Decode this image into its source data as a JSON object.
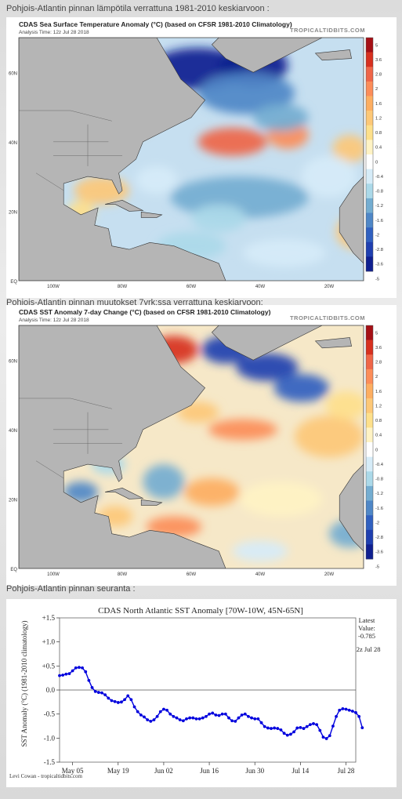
{
  "sections": [
    {
      "heading": "Pohjois-Atlantin pinnan lämpötila verrattuna 1981-2010 keskiarvoon :"
    },
    {
      "heading": "Pohjois-Atlantin pinnan muutokset 7vrk:ssa verrattuna keskiarvoon:"
    },
    {
      "heading": "Pohjois-Atlantin pinnan seuranta :"
    }
  ],
  "maps": [
    {
      "title": "CDAS Sea Surface Temperature Anomaly (°C) (based on CFSR 1981-2010 Climatology)",
      "subtitle": "Analysis Time: 12z Jul 28 2018",
      "brand": "TROPICALTIDBITS.COM"
    },
    {
      "title": "CDAS SST Anomaly 7-day Change (°C) (based on CFSR 1981-2010 Climatology)",
      "subtitle": "Analysis Time: 12z Jul 28 2018",
      "brand": "TROPICALTIDBITS.COM"
    }
  ],
  "map_axes": {
    "lat_labels": [
      "60N",
      "40N",
      "20N",
      "EQ"
    ],
    "lon_labels": [
      "100W",
      "80W",
      "60W",
      "40W",
      "20W"
    ]
  },
  "colorbar": {
    "labels": [
      "5",
      "3.6",
      "2.8",
      "2",
      "1.6",
      "1.2",
      "0.8",
      "0.4",
      "0",
      "-0.4",
      "-0.8",
      "-1.2",
      "-1.6",
      "-2",
      "-2.8",
      "-3.6",
      "-5"
    ],
    "colors": [
      "#a50f15",
      "#d7301f",
      "#ef6548",
      "#fc8d59",
      "#fdae61",
      "#fdc877",
      "#fee08b",
      "#fff3c4",
      "#ffffff",
      "#d6ecf8",
      "#abd9e9",
      "#74add1",
      "#4f87c7",
      "#3060c0",
      "#1f3fb0",
      "#0f1f90"
    ]
  },
  "chart_data": {
    "type": "line",
    "title": "CDAS North Atlantic SST Anomaly [70W-10W, 45N-65N]",
    "ylabel": "SST Anomaly (°C) (1981-2010 climatology)",
    "ylim": [
      -1.5,
      1.5
    ],
    "yticks": [
      "+1.5",
      "+1.0",
      "+0.5",
      "0.0",
      "-0.5",
      "-1.0",
      "-1.5"
    ],
    "xlim": [
      0,
      91
    ],
    "xtick_days": [
      4,
      18,
      32,
      46,
      60,
      74,
      88
    ],
    "xtick_labels": [
      "May 05",
      "May 19",
      "Jun 02",
      "Jun 16",
      "Jun 30",
      "Jul 14",
      "Jul 28"
    ],
    "series": [
      {
        "name": "",
        "color": "#0000dd",
        "y": [
          0.3,
          0.31,
          0.33,
          0.34,
          0.4,
          0.46,
          0.47,
          0.46,
          0.38,
          0.2,
          0.05,
          -0.03,
          -0.05,
          -0.06,
          -0.1,
          -0.17,
          -0.22,
          -0.24,
          -0.26,
          -0.25,
          -0.2,
          -0.12,
          -0.2,
          -0.35,
          -0.45,
          -0.52,
          -0.56,
          -0.62,
          -0.65,
          -0.62,
          -0.55,
          -0.45,
          -0.4,
          -0.42,
          -0.5,
          -0.55,
          -0.58,
          -0.62,
          -0.64,
          -0.6,
          -0.58,
          -0.58,
          -0.6,
          -0.6,
          -0.58,
          -0.55,
          -0.5,
          -0.48,
          -0.52,
          -0.53,
          -0.5,
          -0.5,
          -0.58,
          -0.64,
          -0.65,
          -0.58,
          -0.52,
          -0.5,
          -0.55,
          -0.58,
          -0.6,
          -0.6,
          -0.68,
          -0.76,
          -0.79,
          -0.8,
          -0.79,
          -0.8,
          -0.83,
          -0.9,
          -0.94,
          -0.92,
          -0.87,
          -0.79,
          -0.78,
          -0.8,
          -0.76,
          -0.72,
          -0.7,
          -0.72,
          -0.84,
          -0.98,
          -1.01,
          -0.95,
          -0.75,
          -0.55,
          -0.42,
          -0.39,
          -0.4,
          -0.42,
          -0.44,
          -0.47,
          -0.55,
          -0.785
        ]
      }
    ],
    "latest": {
      "label": "Latest",
      "label2": "Value:",
      "value": "-0.785",
      "time": "12z Jul 28"
    },
    "credit": "Levi Cowan - tropicaltidbits.com"
  }
}
